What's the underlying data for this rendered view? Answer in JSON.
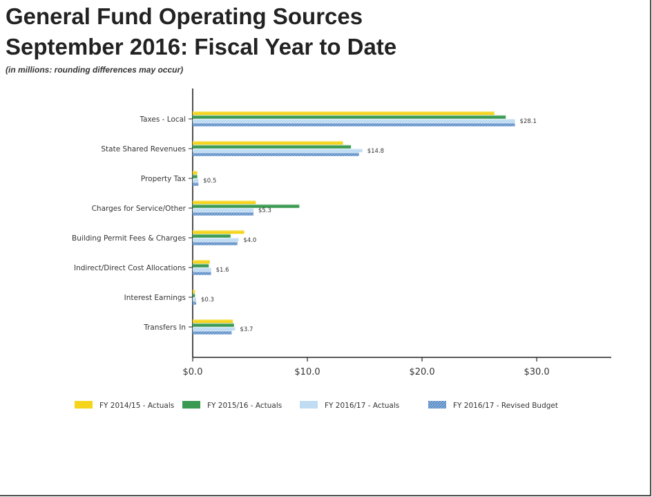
{
  "page": {
    "title_line1": "General Fund Operating Sources",
    "title_line2": "September 2016: Fiscal Year to Date",
    "subtitle": "(in millions: rounding differences may occur)"
  },
  "chart_data": {
    "type": "bar",
    "orientation": "horizontal",
    "categories": [
      "Taxes - Local",
      "State Shared Revenues",
      "Property Tax",
      "Charges for Service/Other",
      "Building Permit Fees & Charges",
      "Indirect/Direct Cost Allocations",
      "Interest Earnings",
      "Transfers In"
    ],
    "series": [
      {
        "name": "FY 2014/15 - Actuals",
        "color": "#f5d41a",
        "values": [
          26.3,
          13.1,
          0.4,
          5.5,
          4.5,
          1.5,
          0.2,
          3.5
        ]
      },
      {
        "name": "FY 2015/16 - Actuals",
        "color": "#3a9a52",
        "values": [
          27.3,
          13.8,
          0.4,
          9.3,
          3.3,
          1.4,
          0.2,
          3.6
        ]
      },
      {
        "name": "FY 2016/17 - Actuals",
        "color": "#bfdcf3",
        "values": [
          28.1,
          14.8,
          0.5,
          5.3,
          4.0,
          1.6,
          0.3,
          3.7
        ]
      },
      {
        "name": "FY 2016/17 - Revised Budget",
        "color": "#4f7fba",
        "values": [
          28.1,
          14.5,
          0.5,
          5.3,
          3.9,
          1.6,
          0.3,
          3.4
        ]
      }
    ],
    "data_labels": [
      "$28.1",
      "$14.8",
      "$0.5",
      "$5.3",
      "$4.0",
      "$1.6",
      "$0.3",
      "$3.7"
    ],
    "x_ticks": [
      {
        "value": 0,
        "label": "$0.0"
      },
      {
        "value": 10,
        "label": "$10.0"
      },
      {
        "value": 20,
        "label": "$20.0"
      },
      {
        "value": 30,
        "label": "$30.0"
      }
    ],
    "xlim": [
      0,
      36.5
    ],
    "grid": false,
    "legend": "bottom"
  }
}
